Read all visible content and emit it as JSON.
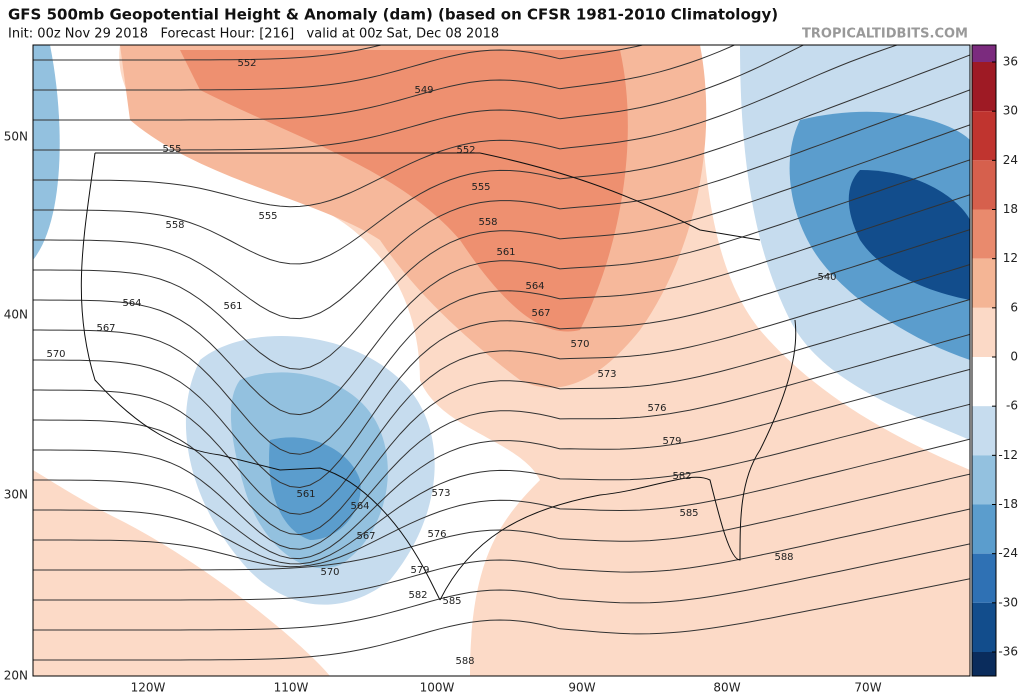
{
  "header": {
    "title": "GFS 500mb Geopotential Height & Anomaly (dam) (based on CFSR 1981-2010 Climatology)",
    "subtitle": "Init: 00z Nov 29 2018   Forecast Hour: [216]   valid at 00z Sat, Dec 08 2018",
    "watermark": "TROPICALTIDBITS.COM"
  },
  "map": {
    "lat_labels": [
      "50N",
      "40N",
      "30N",
      "20N"
    ],
    "lon_labels": [
      "120W",
      "110W",
      "100W",
      "90W",
      "80W",
      "70W"
    ],
    "contour_labels": [
      "552",
      "549",
      "552",
      "555",
      "555",
      "558",
      "555",
      "558",
      "561",
      "564",
      "567",
      "570",
      "573",
      "576",
      "579",
      "582",
      "585",
      "588",
      "564",
      "567",
      "570",
      "561",
      "561",
      "564",
      "567",
      "570",
      "573",
      "576",
      "579",
      "582",
      "585",
      "588",
      "540"
    ]
  },
  "colorbar": {
    "ticks": [
      36,
      30,
      24,
      18,
      12,
      6,
      0,
      -6,
      -12,
      -18,
      -24,
      -30,
      -36
    ],
    "colors": [
      "#7b2b7e",
      "#9e1a24",
      "#c0342f",
      "#d6604d",
      "#e98a6d",
      "#f4b595",
      "#fbd9c6",
      "#ffffff",
      "#c6dcee",
      "#93c1df",
      "#5b9dcd",
      "#2f71b4",
      "#124d8c",
      "#0a2c5c"
    ]
  }
}
